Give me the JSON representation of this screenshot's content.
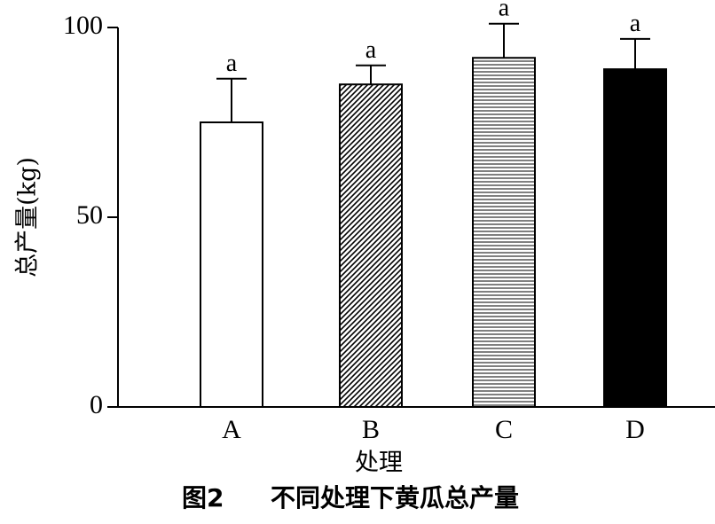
{
  "chart_data": {
    "type": "bar",
    "categories": [
      "A",
      "B",
      "C",
      "D"
    ],
    "values": [
      75,
      85,
      92,
      89
    ],
    "error_upper": [
      86.5,
      90,
      101,
      97
    ],
    "significance_letters": [
      "a",
      "a",
      "a",
      "a"
    ],
    "patterns": [
      "none",
      "diagonal-hatch",
      "horizontal-lines",
      "solid"
    ],
    "fill_colors": [
      "#ffffff",
      "#ffffff",
      "#ffffff",
      "#000000"
    ],
    "xlabel": "处理",
    "ylabel": "总产量(kg)",
    "ylim": [
      0,
      100
    ],
    "yticks": [
      "0",
      "50",
      "100"
    ],
    "grid": false
  },
  "caption": {
    "number": "图2",
    "text": "不同处理下黄瓜总产量"
  }
}
